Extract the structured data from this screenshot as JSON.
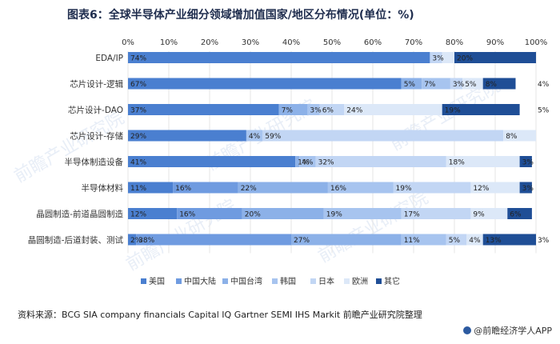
{
  "title": "图表6：全球半导体产业细分领域增加值国家/地区分布情况(单位：%)",
  "source": "资料来源：BCG SIA company financials Capital IQ Gartner SEMI IHS Markit 前瞻产业研究院整理",
  "brand": "@前瞻经济学人APP",
  "watermark": "前瞻产业研究院",
  "chart_data": {
    "type": "bar",
    "orientation": "horizontal",
    "stacked": true,
    "xlim": [
      0,
      100
    ],
    "xticks": [
      "0%",
      "10%",
      "20%",
      "30%",
      "40%",
      "50%",
      "60%",
      "70%",
      "80%",
      "90%",
      "100%"
    ],
    "legend_position": "bottom",
    "categories": [
      "EDA/IP",
      "芯片设计-逻辑",
      "芯片设计-DAO",
      "芯片设计-存储",
      "半导体制造设备",
      "半导体材料",
      "晶圆制造-前道晶圆制造",
      "晶圆制造-后道封装、测试"
    ],
    "series": [
      {
        "name": "美国",
        "color": "#4a7fd0",
        "values": [
          74,
          67,
          37,
          29,
          41,
          11,
          12,
          2
        ],
        "labels": [
          "74%",
          "67%",
          "37%",
          "29%",
          "41%",
          "11%",
          "12%",
          "2%"
        ]
      },
      {
        "name": "中国大陆",
        "color": "#6f9be0",
        "values": [
          0,
          0,
          0,
          0,
          0,
          16,
          16,
          38
        ],
        "labels": [
          "",
          "",
          "",
          "",
          "",
          "16%",
          "16%",
          "38%"
        ]
      },
      {
        "name": "中国台湾",
        "color": "#8cb1e8",
        "values": [
          0,
          5,
          7,
          0,
          1,
          22,
          20,
          27
        ],
        "labels": [
          "",
          "5%",
          "7%",
          "",
          "1%",
          "22%",
          "20%",
          "27%"
        ]
      },
      {
        "name": "韩国",
        "color": "#a7c4ef",
        "values": [
          0,
          7,
          3,
          4,
          4,
          16,
          19,
          11
        ],
        "labels": [
          "",
          "7%",
          "3%",
          "4%",
          "4%",
          "16%",
          "19%",
          "11%"
        ]
      },
      {
        "name": "日本",
        "color": "#c2d6f4",
        "values": [
          3,
          3,
          6,
          59,
          32,
          19,
          17,
          5
        ],
        "labels": [
          "3%",
          "3%",
          "6%",
          "59%",
          "32%",
          "19%",
          "17%",
          "5%"
        ]
      },
      {
        "name": "欧洲",
        "color": "#dce8f8",
        "values": [
          3,
          5,
          24,
          8,
          18,
          12,
          9,
          4
        ],
        "labels": [
          "",
          "5%",
          "24%",
          "8%",
          "18%",
          "12%",
          "9%",
          "4%"
        ]
      },
      {
        "name": "其它",
        "color": "#1f4e96",
        "values": [
          20,
          8,
          19,
          0,
          3,
          3,
          6,
          13
        ],
        "labels": [
          "20%",
          "8%",
          "19%",
          "",
          "3%",
          "3%",
          "6%",
          "13%"
        ]
      }
    ],
    "end_labels": [
      "",
      "4%",
      "5%",
      "",
      "",
      "",
      "",
      "3%"
    ]
  }
}
